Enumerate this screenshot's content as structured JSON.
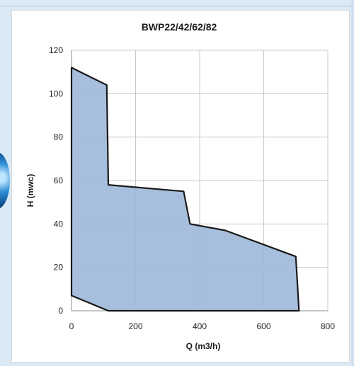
{
  "chart_data": {
    "type": "area",
    "title": "BWP22/42/62/82",
    "xlabel": "Q (m3/h)",
    "ylabel": "H (mwc)",
    "xlim": [
      0,
      800
    ],
    "ylim": [
      0,
      120
    ],
    "xticks": [
      0,
      200,
      400,
      600,
      800
    ],
    "yticks": [
      0,
      20,
      40,
      60,
      80,
      100,
      120
    ],
    "grid": true,
    "series": [
      {
        "x": [
          0,
          110,
          115,
          350,
          370,
          480,
          700,
          710,
          115,
          0
        ],
        "y": [
          112,
          104,
          58,
          55,
          40,
          37,
          25,
          0,
          0,
          7
        ]
      }
    ],
    "fill_color": "#9db8d8",
    "line_color": "#1a1a1a"
  }
}
